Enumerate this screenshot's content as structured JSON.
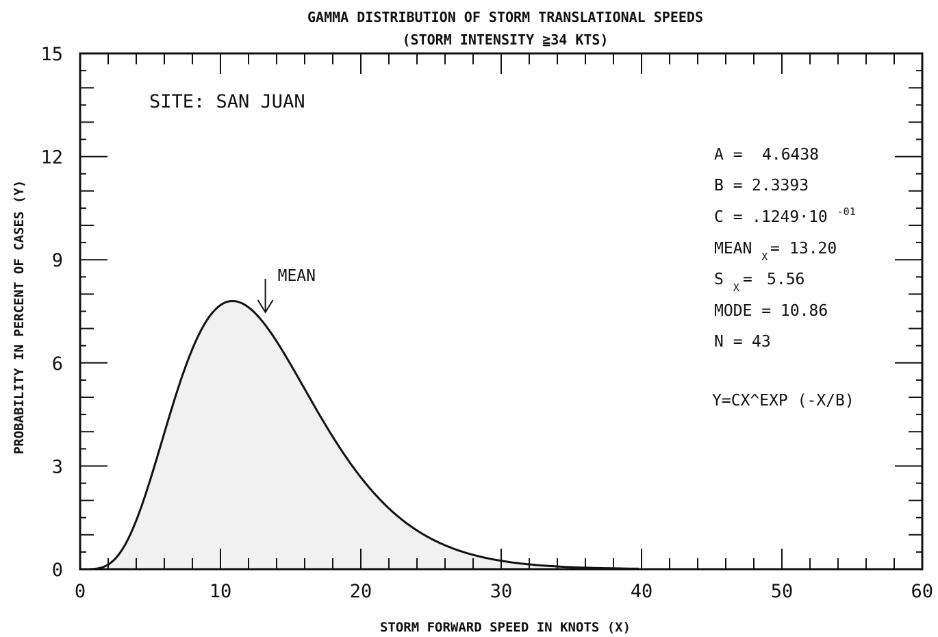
{
  "chart_data": {
    "type": "area",
    "title": "GAMMA DISTRIBUTION OF STORM TRANSLATIONAL SPEEDS",
    "subtitle": "(STORM INTENSITY ≧34 KTS)",
    "xlabel": "STORM FORWARD SPEED IN KNOTS (X)",
    "ylabel": "PROBABILITY IN PERCENT OF CASES (Y)",
    "xlim": [
      0,
      60
    ],
    "ylim": [
      0,
      15
    ],
    "x_ticks": [
      "0",
      "10",
      "20",
      "30",
      "40",
      "50",
      "60"
    ],
    "y_ticks": [
      "0",
      "3",
      "6",
      "9",
      "12",
      "15"
    ],
    "site_label": "SITE:  SAN JUAN",
    "mean_label": "MEAN",
    "mean_x": 13.2,
    "equation": "Y=CX^EXP (-X/B)",
    "params": {
      "a": {
        "label": "A =",
        "value": "4.6438"
      },
      "b": {
        "label": "B =",
        "value": "2.3393"
      },
      "c": {
        "label": "C =",
        "value": ".1249·10",
        "exp": "-01"
      },
      "mean": {
        "label": "MEAN",
        "sub": "X",
        "eq": "=",
        "value": "13.20"
      },
      "s": {
        "label": "S",
        "sub": "X",
        "eq": "=",
        "value": "5.56"
      },
      "mode": {
        "label": "MODE =",
        "value": "10.86"
      },
      "n": {
        "label": "N =",
        "value": "43"
      }
    },
    "gamma": {
      "A": 4.6438,
      "B": 2.3393,
      "C": 0.01249
    },
    "series": [
      {
        "x": [
          0,
          1,
          2,
          3,
          4,
          5,
          6,
          7,
          8,
          9,
          10,
          11,
          12,
          13,
          14,
          15,
          16,
          17,
          18,
          19,
          20,
          22,
          24,
          26,
          28,
          30,
          32,
          34,
          36,
          38,
          40
        ],
        "y": [
          0,
          0.001,
          0.25,
          1.0,
          2.1,
          3.4,
          4.7,
          5.8,
          6.7,
          7.3,
          7.7,
          7.8,
          7.7,
          7.4,
          6.9,
          6.3,
          5.6,
          4.9,
          4.2,
          3.55,
          2.9,
          1.9,
          1.15,
          0.67,
          0.37,
          0.2,
          0.1,
          0.05,
          0.025,
          0.012,
          0.005
        ]
      }
    ],
    "colors": {
      "fill": "#f1f1f1",
      "line": "#111111"
    }
  }
}
